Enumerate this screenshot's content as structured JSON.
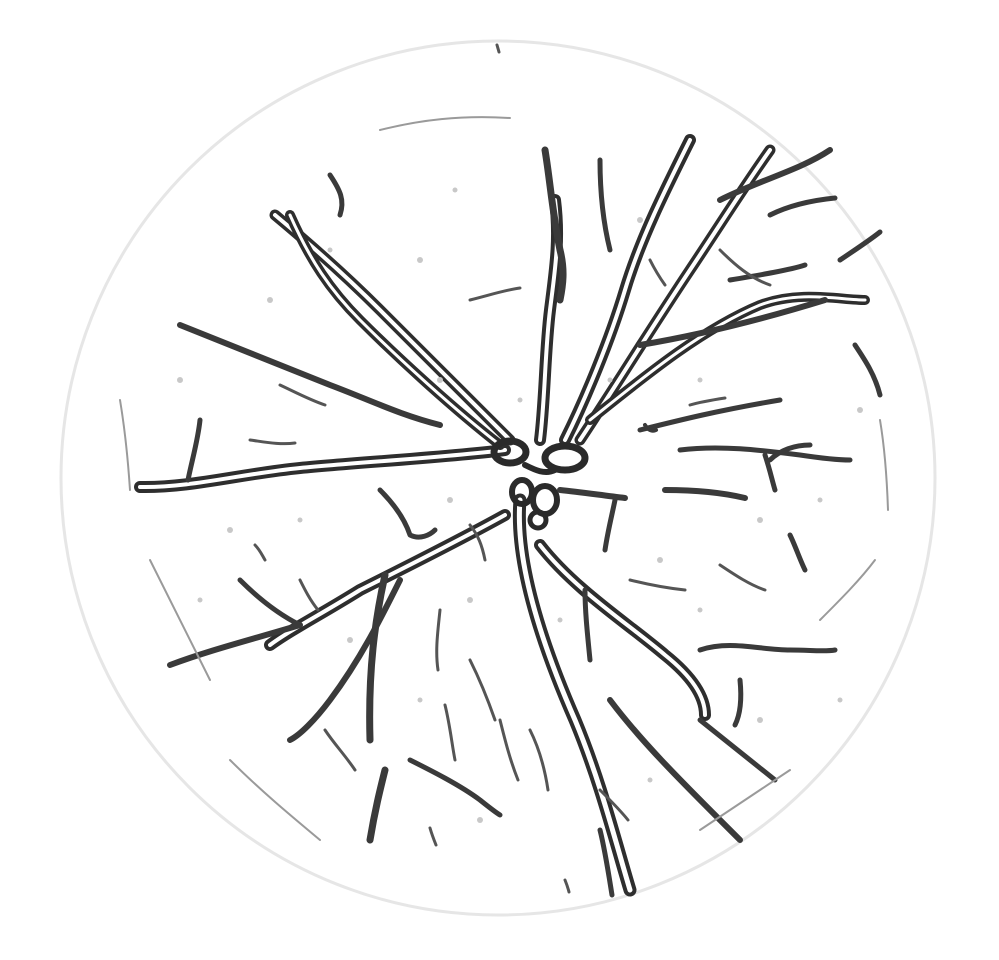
{
  "image": {
    "subject": "retinal-fundus-vessel-map",
    "background_color": "#ffffff",
    "field_edge_color": "#e6e6e6",
    "vessel_color": "#2a2a2a"
  }
}
